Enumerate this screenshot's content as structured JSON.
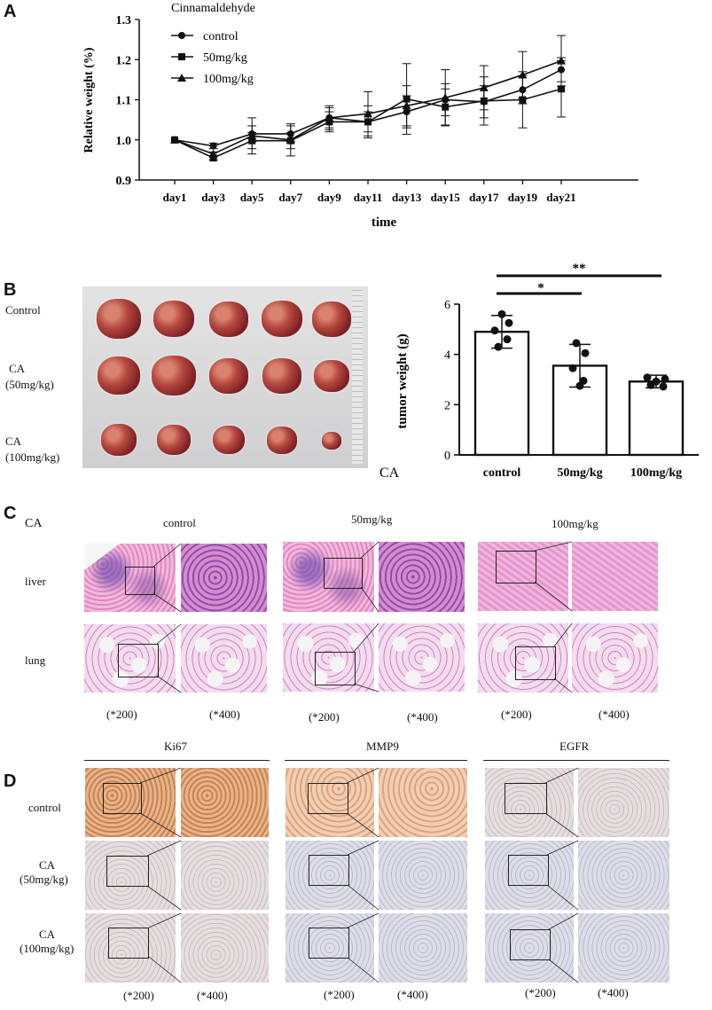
{
  "panels": {
    "a": "A",
    "b": "B",
    "c": "C",
    "d": "D"
  },
  "panel_a": {
    "legend_title": "Cinnamaldehyde",
    "legend": [
      "control",
      "50mg/kg",
      "100mg/kg"
    ],
    "ylabel": "Relative weight (%)",
    "xlabel": "time",
    "yticks": [
      "0.9",
      "1.0",
      "1.1",
      "1.2",
      "1.3"
    ],
    "xticks": [
      "day1",
      "day3",
      "day5",
      "day7",
      "day9",
      "day11",
      "day13",
      "day15",
      "day17",
      "day19",
      "day21"
    ]
  },
  "panel_b": {
    "row_labels": [
      "Control",
      "CA",
      "(50mg/kg)",
      "CA",
      "(100mg/kg)"
    ],
    "ylabel": "tumor weight (g)",
    "group_prefix": "CA",
    "categories": [
      "control",
      "50mg/kg",
      "100mg/kg"
    ],
    "yticks": [
      "0",
      "2",
      "4",
      "6"
    ],
    "sig_single": "*",
    "sig_double": "**"
  },
  "panel_c": {
    "corner": "CA",
    "groups": [
      "control",
      "50mg/kg",
      "100mg/kg"
    ],
    "rows": [
      "liver",
      "lung"
    ],
    "mag_low": "(*200)",
    "mag_high": "(*400)"
  },
  "panel_d": {
    "markers": [
      "Ki67",
      "MMP9",
      "EGFR"
    ],
    "row1": "control",
    "row2a": "CA",
    "row2b": "(50mg/kg)",
    "row3a": "CA",
    "row3b": "(100mg/kg)",
    "mag_low": "(*200)",
    "mag_high": "(*400)"
  },
  "chart_data": [
    {
      "type": "line",
      "title": "",
      "legend_title": "Cinnamaldehyde",
      "xlabel": "time",
      "ylabel": "Relative weight (%)",
      "x": [
        "day1",
        "day3",
        "day5",
        "day7",
        "day9",
        "day11",
        "day13",
        "day15",
        "day17",
        "day19",
        "day21"
      ],
      "ylim": [
        0.9,
        1.3
      ],
      "legend_position": "top-left",
      "series": [
        {
          "name": "control",
          "marker": "circle",
          "values": [
            1.0,
            0.985,
            1.015,
            1.015,
            1.055,
            1.045,
            1.07,
            1.1,
            1.095,
            1.125,
            1.175
          ],
          "errors": [
            0,
            0.007,
            0.02,
            0.02,
            0.025,
            0.025,
            0.04,
            0.04,
            0.04,
            0.035,
            0.03
          ]
        },
        {
          "name": "50mg/kg",
          "marker": "square",
          "values": [
            1.0,
            0.955,
            0.998,
            0.998,
            1.045,
            1.045,
            1.102,
            1.082,
            1.097,
            1.1,
            1.127
          ],
          "errors": [
            0,
            0.005,
            0.02,
            0.02,
            0.025,
            0.04,
            0.088,
            0.045,
            0.06,
            0.07,
            0.07
          ]
        },
        {
          "name": "100mg/kg",
          "marker": "triangle",
          "values": [
            1.0,
            0.965,
            1.01,
            1.0,
            1.055,
            1.065,
            1.085,
            1.105,
            1.13,
            1.162,
            1.197
          ],
          "errors": [
            0,
            0.005,
            0.045,
            0.04,
            0.03,
            0.055,
            0.05,
            0.07,
            0.055,
            0.058,
            0.063
          ]
        }
      ]
    },
    {
      "type": "bar",
      "title": "",
      "xlabel": "CA",
      "ylabel": "tumor weight (g)",
      "categories": [
        "control",
        "50mg/kg",
        "100mg/kg"
      ],
      "values": [
        4.9,
        3.55,
        2.92
      ],
      "errors": [
        0.65,
        0.85,
        0.25
      ],
      "points": [
        [
          5.6,
          5.25,
          4.95,
          4.6,
          4.3
        ],
        [
          4.45,
          4.05,
          3.45,
          2.95,
          2.75
        ],
        [
          3.08,
          3.02,
          2.92,
          2.78,
          2.72
        ]
      ],
      "ylim": [
        0,
        6
      ],
      "significance": [
        {
          "from": "control",
          "to": "50mg/kg",
          "label": "*"
        },
        {
          "from": "control",
          "to": "100mg/kg",
          "label": "**"
        }
      ]
    }
  ]
}
